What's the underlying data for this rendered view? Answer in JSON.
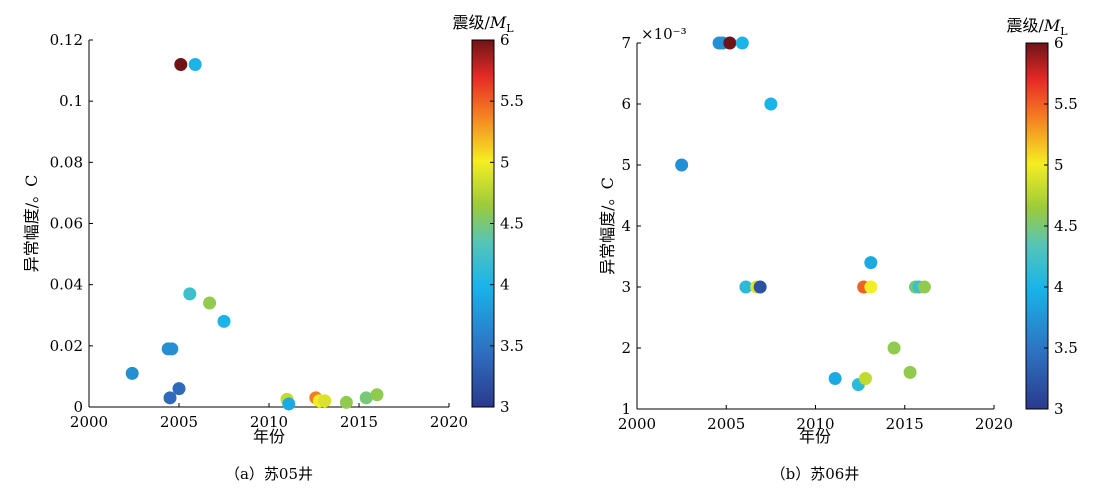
{
  "chart_data": [
    {
      "type": "scatter",
      "caption": "（a）苏05井",
      "xlabel": "年份",
      "ylabel": "异常幅度/。C",
      "xlim": [
        2000,
        2020
      ],
      "ylim": [
        0,
        0.12
      ],
      "xticks": [
        "2000",
        "2005",
        "2010",
        "2015",
        "2020"
      ],
      "yticks": [
        "0",
        "0.02",
        "0.04",
        "0.06",
        "0.08",
        "0.1",
        "0.12"
      ],
      "y_exponent": "",
      "grid": false,
      "colorbar": {
        "title_prefix": "震级/",
        "title_var": "M",
        "title_sub": "L",
        "range": [
          3,
          6
        ],
        "ticks": [
          "3",
          "3.5",
          "4",
          "4.5",
          "5",
          "5.5",
          "6"
        ],
        "colormap": "jet"
      },
      "points": [
        {
          "x": 2005.1,
          "y": 0.112,
          "m": 6.0
        },
        {
          "x": 2005.9,
          "y": 0.112,
          "m": 4.0
        },
        {
          "x": 2005.6,
          "y": 0.037,
          "m": 4.2
        },
        {
          "x": 2006.7,
          "y": 0.034,
          "m": 4.6
        },
        {
          "x": 2007.5,
          "y": 0.028,
          "m": 4.0
        },
        {
          "x": 2002.4,
          "y": 0.011,
          "m": 3.7
        },
        {
          "x": 2004.4,
          "y": 0.019,
          "m": 3.7
        },
        {
          "x": 2004.6,
          "y": 0.019,
          "m": 3.7
        },
        {
          "x": 2005.0,
          "y": 0.006,
          "m": 3.4
        },
        {
          "x": 2004.5,
          "y": 0.003,
          "m": 3.4
        },
        {
          "x": 2011.0,
          "y": 0.0025,
          "m": 4.8
        },
        {
          "x": 2011.1,
          "y": 0.001,
          "m": 3.9
        },
        {
          "x": 2012.6,
          "y": 0.003,
          "m": 5.4
        },
        {
          "x": 2012.8,
          "y": 0.002,
          "m": 5.0
        },
        {
          "x": 2013.1,
          "y": 0.002,
          "m": 4.9
        },
        {
          "x": 2014.3,
          "y": 0.0015,
          "m": 4.6
        },
        {
          "x": 2015.4,
          "y": 0.003,
          "m": 4.5
        },
        {
          "x": 2016.0,
          "y": 0.004,
          "m": 4.6
        }
      ]
    },
    {
      "type": "scatter",
      "caption": "（b）苏06井",
      "xlabel": "年份",
      "ylabel": "异常幅度/。C",
      "xlim": [
        2000,
        2020
      ],
      "ylim": [
        1,
        7
      ],
      "xticks": [
        "2000",
        "2005",
        "2010",
        "2015",
        "2020"
      ],
      "yticks": [
        "1",
        "2",
        "3",
        "4",
        "5",
        "6",
        "7"
      ],
      "y_exponent": "×10⁻³",
      "grid": false,
      "colorbar": {
        "title_prefix": "震级/",
        "title_var": "M",
        "title_sub": "L",
        "range": [
          3,
          6
        ],
        "ticks": [
          "3",
          "3.5",
          "4",
          "4.5",
          "5",
          "5.5",
          "6"
        ],
        "colormap": "jet"
      },
      "points": [
        {
          "x": 2004.6,
          "y": 7.0,
          "m": 3.7
        },
        {
          "x": 2004.8,
          "y": 7.0,
          "m": 3.7
        },
        {
          "x": 2005.2,
          "y": 7.0,
          "m": 6.0
        },
        {
          "x": 2005.9,
          "y": 7.0,
          "m": 4.0
        },
        {
          "x": 2007.5,
          "y": 6.0,
          "m": 4.0
        },
        {
          "x": 2002.5,
          "y": 5.0,
          "m": 3.7
        },
        {
          "x": 2006.1,
          "y": 3.0,
          "m": 4.1
        },
        {
          "x": 2006.7,
          "y": 3.0,
          "m": 4.9
        },
        {
          "x": 2006.9,
          "y": 3.0,
          "m": 3.2
        },
        {
          "x": 2012.7,
          "y": 3.0,
          "m": 5.5
        },
        {
          "x": 2013.1,
          "y": 3.0,
          "m": 5.0
        },
        {
          "x": 2013.1,
          "y": 3.4,
          "m": 3.9
        },
        {
          "x": 2015.6,
          "y": 3.0,
          "m": 4.5
        },
        {
          "x": 2015.8,
          "y": 3.0,
          "m": 4.2
        },
        {
          "x": 2016.1,
          "y": 3.0,
          "m": 4.6
        },
        {
          "x": 2011.1,
          "y": 1.5,
          "m": 3.9
        },
        {
          "x": 2012.4,
          "y": 1.4,
          "m": 4.1
        },
        {
          "x": 2012.8,
          "y": 1.5,
          "m": 4.8
        },
        {
          "x": 2014.4,
          "y": 2.0,
          "m": 4.6
        },
        {
          "x": 2015.3,
          "y": 1.6,
          "m": 4.6
        }
      ]
    }
  ]
}
